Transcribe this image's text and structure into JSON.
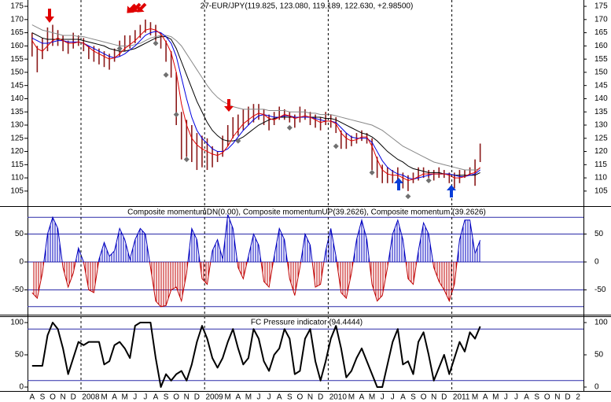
{
  "chart_data": [
    {
      "type": "hilo",
      "title": "27-EUR/JPY(119.825, 123.080, 119.189, 122.630, +2.98500)",
      "bar_color": "#8b1a1a",
      "high": [
        165,
        160,
        163,
        167,
        168,
        166,
        164,
        162,
        165,
        164,
        163,
        160,
        160,
        159,
        158,
        157,
        159,
        162,
        164,
        164,
        166,
        168,
        170,
        169,
        168,
        165,
        162,
        158,
        150,
        135,
        132,
        130,
        127,
        126,
        125,
        122,
        120,
        126,
        130,
        133,
        134,
        136,
        137,
        138,
        138,
        136,
        134,
        135,
        137,
        136,
        135,
        134,
        137,
        136,
        135,
        134,
        133,
        135,
        134,
        133,
        128,
        127,
        126,
        127,
        128,
        127,
        125,
        118,
        115,
        114,
        113,
        114,
        112,
        111,
        112,
        114,
        114,
        113,
        113,
        114,
        113,
        112,
        112,
        113,
        113,
        114,
        117,
        123,
        null,
        null,
        null,
        null,
        null,
        null,
        null,
        null,
        null,
        null,
        null,
        null,
        null,
        null,
        null,
        null,
        null,
        null,
        null,
        null
      ],
      "low": [
        156,
        150,
        155,
        158,
        160,
        160,
        158,
        157,
        159,
        160,
        158,
        155,
        154,
        153,
        152,
        151,
        154,
        156,
        158,
        159,
        161,
        163,
        165,
        164,
        162,
        159,
        154,
        148,
        130,
        117,
        118,
        116,
        113,
        114,
        113,
        114,
        116,
        118,
        122,
        125,
        126,
        128,
        130,
        131,
        132,
        130,
        128,
        130,
        132,
        132,
        131,
        129,
        131,
        132,
        130,
        129,
        128,
        130,
        129,
        127,
        121,
        121,
        122,
        123,
        124,
        123,
        113,
        110,
        108,
        108,
        108,
        109,
        106,
        105,
        108,
        109,
        110,
        110,
        109,
        110,
        110,
        108,
        106,
        108,
        110,
        111,
        107,
        116,
        null,
        null,
        null,
        null,
        null,
        null,
        null,
        null,
        null,
        null,
        null,
        null,
        null,
        null,
        null,
        null,
        null,
        null,
        null,
        null
      ],
      "series": [
        {
          "color": "#888888",
          "values": [
            168,
            167,
            166,
            165.5,
            165,
            164.5,
            164,
            164,
            164,
            163.5,
            163.5,
            163,
            162.5,
            162,
            161.5,
            161,
            160.5,
            160,
            160,
            160,
            160.5,
            161,
            162,
            163,
            163.5,
            164,
            164,
            163.5,
            162,
            160,
            157,
            154,
            151,
            148,
            145,
            142.5,
            140.5,
            139,
            138,
            137,
            136.5,
            136,
            136,
            136,
            136,
            136,
            135.5,
            135.5,
            135.5,
            135.5,
            135,
            135,
            135,
            135,
            134.5,
            134.5,
            134,
            134,
            134,
            133.5,
            133,
            132.5,
            132,
            131.5,
            131,
            130.5,
            130,
            129,
            128,
            126.5,
            125,
            123.5,
            122,
            121,
            120,
            119,
            118,
            117,
            116,
            115.5,
            115,
            114.5,
            114,
            113.5,
            113,
            113,
            113,
            113.5,
            null,
            null,
            null,
            null,
            null,
            null,
            null,
            null,
            null,
            null,
            null,
            null,
            null,
            null,
            null,
            null,
            null,
            null,
            null,
            null
          ]
        },
        {
          "color": "#000000",
          "values": [
            165,
            164,
            163,
            162.5,
            162.5,
            162.5,
            162.5,
            162.5,
            162.5,
            162.5,
            162,
            161.5,
            161,
            160.5,
            160,
            159,
            158.5,
            158,
            158,
            158.5,
            159,
            160,
            161,
            162,
            163,
            163.5,
            163.5,
            162.5,
            159,
            154,
            149,
            144,
            139,
            135,
            131,
            128,
            126,
            124.5,
            124,
            124,
            124.5,
            125.5,
            127,
            128.5,
            130,
            131,
            132,
            132.5,
            133,
            133,
            133,
            133,
            133,
            133,
            133,
            133,
            133,
            132.5,
            132.5,
            132,
            131,
            130,
            129,
            128,
            127,
            126.5,
            125.5,
            124,
            122,
            120,
            118.5,
            117,
            116,
            114.5,
            113.5,
            113,
            112.5,
            112,
            112,
            112,
            111.5,
            111.5,
            111,
            111,
            111,
            111,
            111,
            112,
            null,
            null,
            null,
            null,
            null,
            null,
            null,
            null,
            null,
            null,
            null,
            null,
            null,
            null,
            null,
            null,
            null,
            null,
            null,
            null
          ]
        },
        {
          "color": "#0000e0",
          "values": [
            163,
            162,
            161,
            161,
            161.5,
            162,
            162,
            161.5,
            161.5,
            161.5,
            161,
            160,
            159,
            158,
            157,
            156,
            155.5,
            156,
            157,
            158.5,
            160,
            162,
            164,
            165,
            165.5,
            165,
            163.5,
            161,
            156,
            148,
            140,
            133,
            128,
            125,
            123,
            121,
            120,
            120,
            121,
            123,
            125.5,
            128,
            130,
            132,
            133.5,
            134,
            133.5,
            133,
            133,
            133.5,
            133.5,
            133,
            133,
            133,
            133,
            132.5,
            132,
            131.5,
            131.5,
            131,
            129,
            127,
            125.5,
            125,
            125,
            125,
            123.5,
            120,
            116.5,
            114,
            112.5,
            111.5,
            111,
            110,
            109.5,
            110,
            110.5,
            111,
            111.5,
            111.5,
            111.5,
            111.5,
            111,
            110.5,
            110.5,
            111,
            111.5,
            113,
            null,
            null,
            null,
            null,
            null,
            null,
            null,
            null,
            null,
            null,
            null,
            null,
            null,
            null,
            null,
            null,
            null,
            null,
            null,
            null
          ]
        },
        {
          "color": "#e00000",
          "values": [
            162,
            159,
            158,
            160,
            162,
            163,
            162,
            161,
            161,
            161.5,
            161,
            159.5,
            158,
            157,
            156,
            155,
            155.5,
            157,
            159,
            160.5,
            162,
            164,
            166,
            166.5,
            166,
            164.5,
            161.5,
            157.5,
            150,
            138,
            130,
            125,
            122.5,
            121,
            120,
            119,
            118.5,
            119.5,
            122,
            125.5,
            128,
            130.5,
            132,
            133.5,
            134.5,
            134,
            132.5,
            132,
            133,
            134,
            133.5,
            132.5,
            133,
            133.5,
            133,
            132,
            131,
            131.5,
            131.5,
            130.5,
            127,
            125,
            124,
            124.5,
            125.5,
            125.5,
            122,
            117,
            113,
            111.5,
            111,
            111,
            110,
            109,
            109.5,
            110.5,
            111.5,
            111.5,
            111.5,
            111.5,
            111.5,
            111,
            110,
            110,
            110.5,
            111.5,
            112,
            114,
            null,
            null,
            null,
            null,
            null,
            null,
            null,
            null,
            null,
            null,
            null,
            null,
            null,
            null,
            null,
            null,
            null,
            null,
            null,
            null
          ]
        }
      ],
      "markers": {
        "color": "#707070",
        "values": [
          null,
          null,
          null,
          null,
          null,
          null,
          null,
          null,
          null,
          null,
          null,
          null,
          null,
          null,
          null,
          null,
          null,
          159,
          null,
          null,
          null,
          null,
          null,
          null,
          161,
          null,
          149,
          null,
          134,
          null,
          117,
          null,
          null,
          null,
          null,
          null,
          null,
          null,
          null,
          null,
          124,
          null,
          null,
          null,
          null,
          null,
          null,
          null,
          null,
          null,
          129,
          null,
          null,
          null,
          null,
          null,
          null,
          null,
          null,
          122,
          null,
          null,
          null,
          null,
          null,
          null,
          112,
          null,
          null,
          null,
          null,
          null,
          null,
          103,
          null,
          null,
          null,
          109,
          null,
          null,
          null,
          null,
          null,
          null,
          null,
          null,
          null,
          null,
          null,
          null,
          null,
          null,
          null,
          null,
          null,
          null,
          null,
          null,
          null,
          null,
          null,
          null,
          null,
          null,
          null,
          null,
          null,
          null
        ]
      },
      "ylim": [
        99.3,
        177.4
      ],
      "yticks": [
        105,
        110,
        115,
        120,
        125,
        130,
        135,
        140,
        145,
        150,
        155,
        160,
        165,
        170,
        175
      ],
      "grid": false
    },
    {
      "type": "oscillator",
      "title": "Composite momentumDN(0.00), Composite momentumUP(39.2626), Composite momentum (39.2626)",
      "positive_color": "#0000c0",
      "negative_color": "#c00000",
      "values": [
        -55,
        -65,
        -20,
        50,
        80,
        60,
        -10,
        -45,
        -20,
        25,
        0,
        -50,
        -55,
        5,
        35,
        10,
        20,
        60,
        40,
        5,
        40,
        60,
        50,
        -10,
        -70,
        -80,
        -78,
        -50,
        -45,
        -70,
        -20,
        60,
        40,
        -30,
        -40,
        20,
        40,
        5,
        85,
        60,
        -10,
        -30,
        10,
        50,
        30,
        -35,
        -45,
        10,
        60,
        40,
        -30,
        -60,
        -10,
        50,
        30,
        -45,
        -40,
        20,
        60,
        10,
        -55,
        -65,
        -20,
        40,
        75,
        40,
        -40,
        -70,
        -60,
        -10,
        50,
        75,
        40,
        -30,
        -40,
        20,
        70,
        50,
        -10,
        -35,
        -50,
        -70,
        -40,
        40,
        75,
        75,
        15,
        39,
        null,
        null,
        null,
        null,
        null,
        null,
        null,
        null,
        null,
        null,
        null,
        null,
        null,
        null,
        null,
        null,
        null,
        null,
        null,
        null
      ],
      "ylim": [
        -94.4,
        100
      ],
      "yticks": [
        -50,
        0,
        50
      ],
      "grid": true,
      "grid_color": "#2a2aa8",
      "levels": [
        80,
        -80
      ],
      "level_color": "#2a2aa8"
    },
    {
      "type": "line",
      "title": "FC Pressure indicator (94.4444)",
      "color": "#000000",
      "values": [
        33,
        33,
        33,
        80,
        100,
        90,
        60,
        20,
        45,
        70,
        65,
        70,
        70,
        70,
        35,
        40,
        65,
        70,
        60,
        45,
        95,
        100,
        100,
        100,
        45,
        0,
        20,
        10,
        20,
        25,
        10,
        35,
        70,
        95,
        75,
        45,
        30,
        45,
        70,
        90,
        60,
        35,
        45,
        90,
        75,
        40,
        25,
        50,
        60,
        90,
        75,
        20,
        25,
        75,
        90,
        40,
        10,
        40,
        75,
        95,
        60,
        15,
        25,
        45,
        60,
        40,
        20,
        0,
        0,
        35,
        70,
        90,
        35,
        40,
        20,
        70,
        85,
        50,
        10,
        30,
        50,
        20,
        45,
        70,
        55,
        85,
        75,
        94,
        null,
        null,
        null,
        null,
        null,
        null,
        null,
        null,
        null,
        null,
        null,
        null,
        null,
        null,
        null,
        null,
        null,
        null,
        null,
        null
      ],
      "ylim": [
        -6.1,
        109.8
      ],
      "yticks": [
        0,
        50,
        100
      ],
      "grid": false,
      "levels": [
        90,
        10
      ],
      "level_color": "#2a2aa8",
      "categories": [
        "A",
        null,
        "S",
        null,
        "O",
        null,
        "N",
        null,
        "D",
        null,
        "2008",
        null,
        null,
        null,
        "M",
        null,
        "A",
        null,
        "M",
        null,
        "J",
        null,
        "J",
        null,
        "A",
        null,
        "S",
        null,
        "O",
        null,
        "N",
        null,
        "D",
        null,
        "2009",
        null,
        null,
        null,
        "M",
        null,
        "A",
        null,
        "M",
        null,
        "J",
        null,
        "J",
        null,
        "A",
        null,
        "S",
        null,
        "O",
        null,
        "N",
        null,
        "D",
        null,
        "2010",
        null,
        null,
        null,
        "M",
        null,
        "A",
        null,
        "M",
        null,
        "J",
        null,
        "J",
        null,
        "A",
        null,
        "S",
        null,
        "O",
        null,
        "N",
        null,
        "D",
        null,
        "2011",
        null,
        null,
        null,
        "M",
        null,
        "A",
        null,
        "M",
        null,
        "J",
        null,
        "J",
        null,
        "A",
        null,
        "S",
        null,
        "O",
        null,
        "N",
        null,
        "D",
        null,
        "2",
        null
      ],
      "year_dividers": true
    }
  ]
}
